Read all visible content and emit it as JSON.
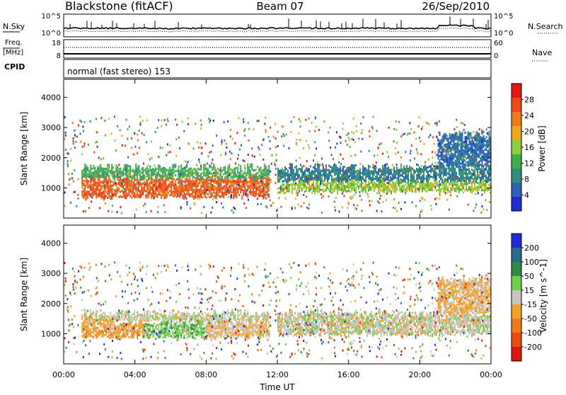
{
  "header": {
    "station": "Blackstone (fitACF)",
    "beam": "Beam 07",
    "date": "26/Sep/2010"
  },
  "summary_panels": {
    "nsky_label": "N.Sky",
    "nsky_ticks": [
      "10^5",
      "10^0"
    ],
    "nsearch_label": "N.Search",
    "nsearch_ticks": [
      "10^5",
      "10^0"
    ],
    "freq_label_1": "Freq.",
    "freq_label_2": "[MHz]",
    "freq_ticks": [
      "18",
      "8"
    ],
    "nave_label": "Nave",
    "nave_ticks": [
      "60",
      "0"
    ],
    "cpid_label": "CPID",
    "cpid_text": "normal (fast stereo) 153"
  },
  "x_axis": {
    "label": "Time UT",
    "ticks": [
      "00:00",
      "04:00",
      "08:00",
      "12:00",
      "16:00",
      "20:00",
      "00:00"
    ]
  },
  "colors": {
    "power_scale": [
      "#1f2bd6",
      "#2a63b8",
      "#2f8f7a",
      "#3db04a",
      "#8fd13a",
      "#f2a81c",
      "#f37a1a",
      "#ef4a14",
      "#e41a10"
    ],
    "velocity_scale": [
      "#1f2bd6",
      "#2b6a8f",
      "#2e8a46",
      "#6fd04a",
      "#c8c6be",
      "#f6a22a",
      "#f07a18",
      "#ec4a10",
      "#e2160a"
    ],
    "ground_scatter": "#c8c6be"
  },
  "chart_data": [
    {
      "type": "heatmap",
      "name": "Power",
      "ylabel": "Slant Range [km]",
      "ylim": [
        0,
        4600
      ],
      "yticks": [
        "1000",
        "2000",
        "3000",
        "4000"
      ],
      "colorbar_label": "Power [dB]",
      "colorbar_ticks": [
        "4",
        "8",
        "12",
        "16",
        "20",
        "24",
        "28"
      ],
      "colorbar_range": [
        0,
        32
      ],
      "xlim_hours": [
        0,
        24
      ],
      "bands": [
        {
          "t0": 1.0,
          "t1": 11.5,
          "r0": 700,
          "r1": 1350,
          "value": 26
        },
        {
          "t0": 1.0,
          "t1": 11.5,
          "r0": 1350,
          "r1": 1700,
          "value": 12
        },
        {
          "t0": 12.0,
          "t1": 24.0,
          "r0": 900,
          "r1": 1250,
          "value": 16
        },
        {
          "t0": 12.0,
          "t1": 24.0,
          "r0": 1250,
          "r1": 1700,
          "value": 8
        },
        {
          "t0": 21.0,
          "t1": 24.0,
          "r0": 1700,
          "r1": 2800,
          "value": 6
        }
      ]
    },
    {
      "type": "heatmap",
      "name": "Velocity",
      "ylabel": "Slant Range [km]",
      "ylim": [
        0,
        4600
      ],
      "yticks": [
        "1000",
        "2000",
        "3000",
        "4000"
      ],
      "colorbar_label": "Velocity [m s^-1]",
      "colorbar_ticks": [
        "200",
        "100",
        "50",
        "15",
        "-15",
        "-50",
        "-100",
        "-200"
      ],
      "colorbar_range": [
        -250,
        250
      ],
      "xlim_hours": [
        0,
        24
      ],
      "bands": [
        {
          "t0": 1.0,
          "t1": 11.5,
          "r0": 1450,
          "r1": 1700,
          "value": 0
        },
        {
          "t0": 1.0,
          "t1": 4.5,
          "r0": 900,
          "r1": 1400,
          "value": -60
        },
        {
          "t0": 4.5,
          "t1": 8.0,
          "r0": 900,
          "r1": 1400,
          "value": 60
        },
        {
          "t0": 8.0,
          "t1": 11.5,
          "r0": 900,
          "r1": 1400,
          "value": -30
        },
        {
          "t0": 12.0,
          "t1": 24.0,
          "r0": 1000,
          "r1": 1700,
          "value": 0
        },
        {
          "t0": 21.0,
          "t1": 24.0,
          "r0": 1700,
          "r1": 2800,
          "value": -40
        }
      ]
    }
  ]
}
